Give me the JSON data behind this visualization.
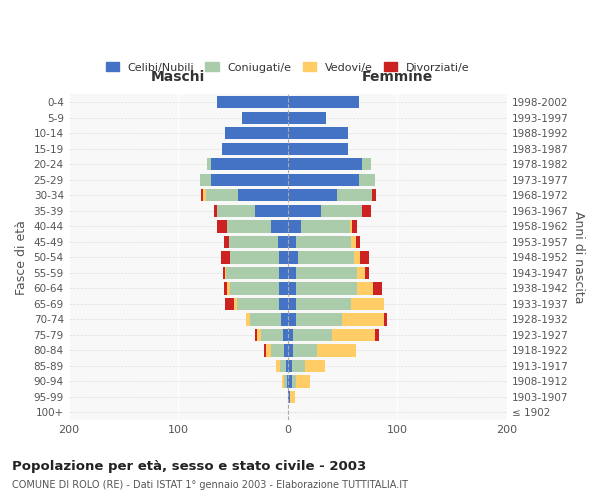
{
  "age_groups": [
    "100+",
    "95-99",
    "90-94",
    "85-89",
    "80-84",
    "75-79",
    "70-74",
    "65-69",
    "60-64",
    "55-59",
    "50-54",
    "45-49",
    "40-44",
    "35-39",
    "30-34",
    "25-29",
    "20-24",
    "15-19",
    "10-14",
    "5-9",
    "0-4"
  ],
  "birth_years": [
    "≤ 1902",
    "1903-1907",
    "1908-1912",
    "1913-1917",
    "1918-1922",
    "1923-1927",
    "1928-1932",
    "1933-1937",
    "1938-1942",
    "1943-1947",
    "1948-1952",
    "1953-1957",
    "1958-1962",
    "1963-1967",
    "1968-1972",
    "1973-1977",
    "1978-1982",
    "1983-1987",
    "1988-1992",
    "1993-1997",
    "1998-2002"
  ],
  "maschi_celibe": [
    0,
    0,
    1,
    2,
    3,
    4,
    6,
    8,
    8,
    8,
    8,
    9,
    15,
    30,
    45,
    70,
    70,
    60,
    57,
    42,
    65
  ],
  "maschi_coniugato": [
    0,
    0,
    2,
    5,
    12,
    20,
    28,
    38,
    45,
    48,
    45,
    45,
    40,
    35,
    30,
    10,
    4,
    0,
    0,
    0,
    0
  ],
  "maschi_vedovo": [
    0,
    0,
    2,
    4,
    5,
    4,
    4,
    3,
    2,
    1,
    0,
    0,
    0,
    0,
    2,
    0,
    0,
    0,
    0,
    0,
    0
  ],
  "maschi_divorziato": [
    0,
    0,
    0,
    0,
    2,
    2,
    0,
    8,
    3,
    2,
    8,
    4,
    10,
    2,
    2,
    0,
    0,
    0,
    0,
    0,
    0
  ],
  "femmine_celibe": [
    0,
    2,
    4,
    4,
    5,
    5,
    8,
    8,
    8,
    8,
    9,
    8,
    12,
    30,
    45,
    65,
    68,
    55,
    55,
    35,
    65
  ],
  "femmine_coniugata": [
    0,
    0,
    4,
    12,
    22,
    35,
    42,
    50,
    55,
    55,
    52,
    50,
    45,
    38,
    32,
    15,
    8,
    0,
    0,
    0,
    0
  ],
  "femmine_vedova": [
    0,
    5,
    12,
    18,
    35,
    40,
    38,
    30,
    15,
    8,
    5,
    4,
    2,
    0,
    0,
    0,
    0,
    0,
    0,
    0,
    0
  ],
  "femmine_divorziata": [
    0,
    0,
    0,
    0,
    0,
    3,
    3,
    0,
    8,
    3,
    8,
    4,
    4,
    8,
    4,
    0,
    0,
    0,
    0,
    0,
    0
  ],
  "colors": {
    "celibe": "#4472C4",
    "coniugato": "#AACCAA",
    "vedovo": "#FFCC66",
    "divorziato": "#CC2222"
  },
  "title": "Popolazione per età, sesso e stato civile - 2003",
  "subtitle": "COMUNE DI ROLO (RE) - Dati ISTAT 1° gennaio 2003 - Elaborazione TUTTITALIA.IT",
  "xlabel_maschi": "Maschi",
  "xlabel_femmine": "Femmine",
  "ylabel": "Fasce di età",
  "ylabel_right": "Anni di nascita",
  "xlim": 200,
  "bg_color": "#f8f8f8",
  "legend_labels": [
    "Celibi/Nubili",
    "Coniugati/e",
    "Vedovi/e",
    "Divorziati/e"
  ]
}
